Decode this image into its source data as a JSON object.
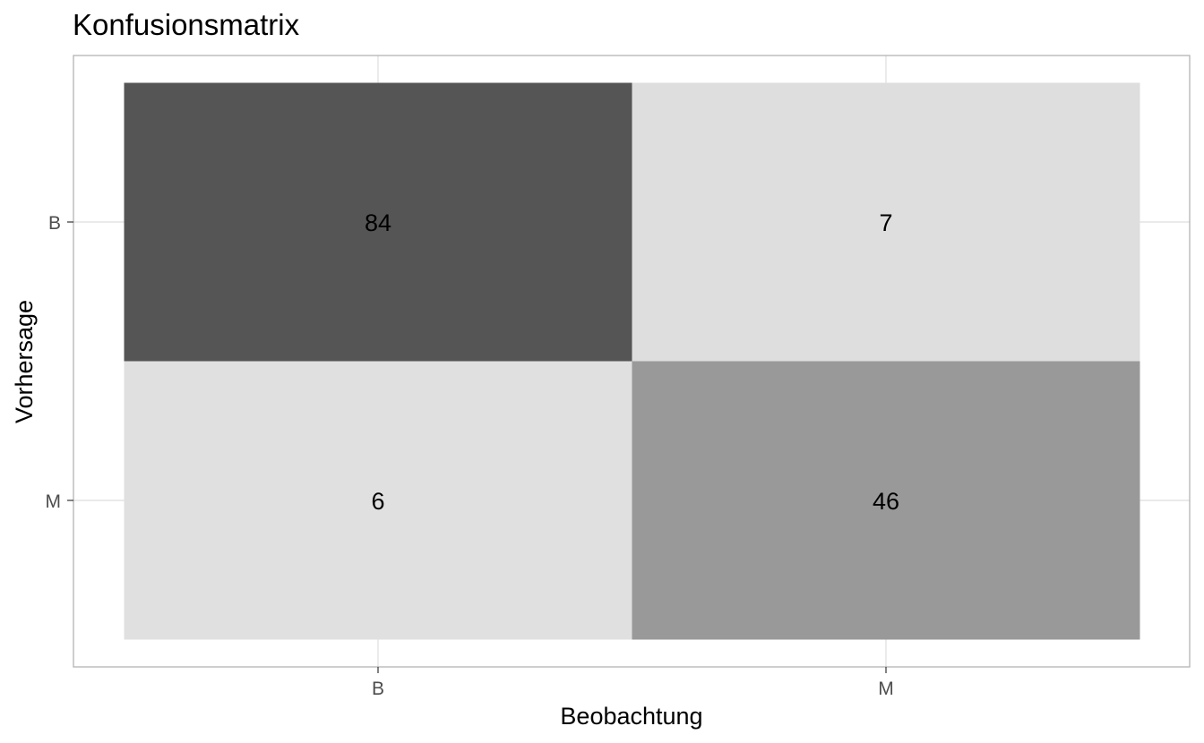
{
  "chart_data": {
    "type": "heatmap",
    "title": "Konfusionsmatrix",
    "xlabel": "Beobachtung",
    "ylabel": "Vorhersage",
    "x_categories": [
      "B",
      "M"
    ],
    "y_categories": [
      "B",
      "M"
    ],
    "cells": [
      {
        "x": "B",
        "y": "B",
        "value": 84
      },
      {
        "x": "M",
        "y": "B",
        "value": 7
      },
      {
        "x": "B",
        "y": "M",
        "value": 6
      },
      {
        "x": "M",
        "y": "M",
        "value": 46
      }
    ],
    "color_low": "#e0e0e0",
    "color_high": "#555555",
    "grid": true,
    "legend": "none"
  }
}
